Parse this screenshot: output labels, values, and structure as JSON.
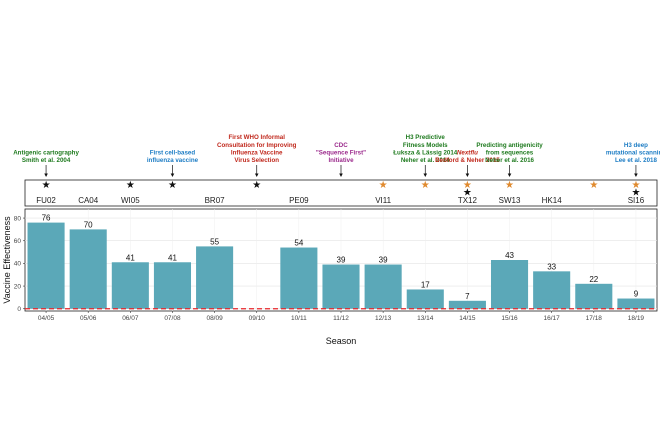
{
  "annotations": [
    {
      "id": "antigenic-cartography",
      "lines": [
        "Antigenic cartography",
        "Smith et al. 2004"
      ],
      "color": "#1e7a1e",
      "italic_first": false,
      "season_index": 0
    },
    {
      "id": "cell-based-vaccine",
      "lines": [
        "First cell-based",
        "influenza vaccine"
      ],
      "color": "#1c7cc4",
      "italic_first": false,
      "season_index": 3
    },
    {
      "id": "who-consultation",
      "lines": [
        "First WHO Informal",
        "Consultation for Improving",
        "Influenza Vaccine",
        "Virus Selection"
      ],
      "color": "#c0281c",
      "italic_first": false,
      "season_index": 5
    },
    {
      "id": "cdc-sequence-first",
      "lines": [
        "CDC",
        "\"Sequence First\"",
        "Initiative"
      ],
      "color": "#9b2a8c",
      "italic_first": false,
      "season_index": 7
    },
    {
      "id": "h3-predictive",
      "lines": [
        "H3 Predictive",
        "Fitness Models",
        "Łuksza & Lässig 2014",
        "Neher et al. 2014"
      ],
      "color": "#1e7a1e",
      "italic_first": false,
      "season_index": 9
    },
    {
      "id": "nextflu",
      "lines": [
        "Nextflu",
        "Bedford & Neher 2015"
      ],
      "color": "#c0281c",
      "italic_first": true,
      "season_index": 10
    },
    {
      "id": "predicting-antigenicity",
      "lines": [
        "Predicting antigenicity",
        "from sequences",
        "Neher et al. 2016"
      ],
      "color": "#1e7a1e",
      "italic_first": false,
      "season_index": 11
    },
    {
      "id": "h3-deep-scanning",
      "lines": [
        "H3 deep",
        "mutational scanning",
        "Lee et al. 2018"
      ],
      "color": "#1c7cc4",
      "italic_first": false,
      "season_index": 14
    }
  ],
  "strains": [
    {
      "label": "FU02",
      "position": 0
    },
    {
      "label": "CA04",
      "position": 1
    },
    {
      "label": "WI05",
      "position": 2
    },
    {
      "label": "BR07",
      "position": 4
    },
    {
      "label": "PE09",
      "position": 6
    },
    {
      "label": "VI11",
      "position": 8
    },
    {
      "label": "TX12",
      "position": 10
    },
    {
      "label": "SW13",
      "position": 11
    },
    {
      "label": "HK14",
      "position": 12
    },
    {
      "label": "SI16",
      "position": 14
    }
  ],
  "stars": [
    {
      "position": 0,
      "color": "#111111"
    },
    {
      "position": 2,
      "color": "#111111"
    },
    {
      "position": 3,
      "color": "#111111"
    },
    {
      "position": 5,
      "color": "#111111"
    },
    {
      "position": 8,
      "color": "#e08a2e"
    },
    {
      "position": 9,
      "color": "#e08a2e"
    },
    {
      "position": 10,
      "color": "#e08a2e"
    },
    {
      "position": 10,
      "color": "#111111"
    },
    {
      "position": 11,
      "color": "#e08a2e"
    },
    {
      "position": 13,
      "color": "#e08a2e"
    },
    {
      "position": 14,
      "color": "#e08a2e"
    },
    {
      "position": 14,
      "color": "#111111"
    }
  ],
  "chart_data": {
    "type": "bar",
    "categories": [
      "04/05",
      "05/06",
      "06/07",
      "07/08",
      "08/09",
      "09/10",
      "10/11",
      "11/12",
      "12/13",
      "13/14",
      "14/15",
      "15/16",
      "16/17",
      "17/18",
      "18/19"
    ],
    "values": [
      76,
      70,
      41,
      41,
      55,
      null,
      54,
      39,
      39,
      17,
      7,
      43,
      33,
      22,
      9
    ],
    "value_labels": [
      "76",
      "70",
      "41",
      "41",
      "55",
      "",
      "54",
      "39",
      "39",
      "17",
      "7",
      "43",
      "33",
      "22",
      "9"
    ],
    "xlabel": "Season",
    "ylabel": "Vaccine Effectiveness",
    "ylim": [
      -2,
      88
    ],
    "yticks": [
      "0",
      "20",
      "40",
      "60",
      "80"
    ],
    "reference_line": {
      "y": 0,
      "style": "dashed",
      "color": "#e8262a"
    },
    "grid": true,
    "bar_color": "#5ba8b8"
  }
}
